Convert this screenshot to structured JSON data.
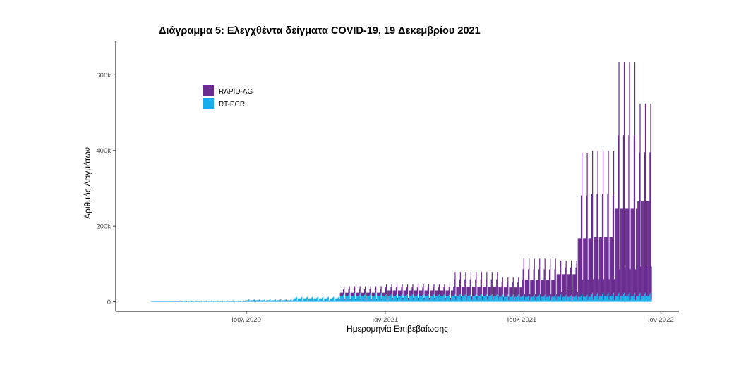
{
  "chart_data": {
    "type": "bar",
    "stacked": true,
    "title": "Διάγραμμα 5: Ελεγχθέντα δείγματα COVID-19, 19 Δεκεμβρίου 2021",
    "xlabel": "Ημερομηνία Επιβεβαίωσης",
    "ylabel": "Αριθμός Δειγμάτων",
    "x_range": [
      "2020-02-26",
      "2021-12-19"
    ],
    "x_axis_limits": [
      "2020-01-10",
      "2022-01-25"
    ],
    "ylim": [
      -25000,
      690000
    ],
    "x_ticks": [
      {
        "date": "2020-07-01",
        "label": "Ιουλ 2020"
      },
      {
        "date": "2021-01-01",
        "label": "Ιαν 2021"
      },
      {
        "date": "2021-07-01",
        "label": "Ιουλ 2021"
      },
      {
        "date": "2022-01-01",
        "label": "Ιαν 2022"
      }
    ],
    "y_ticks": [
      {
        "value": 0,
        "label": "0"
      },
      {
        "value": 200000,
        "label": "200k"
      },
      {
        "value": 400000,
        "label": "400k"
      },
      {
        "value": 600000,
        "label": "600k"
      }
    ],
    "grid": false,
    "legend_position": "top-left",
    "series": [
      {
        "name": "RAPID-AG",
        "color": "#6a2c91",
        "phases": [
          {
            "start": "2020-02-26",
            "end": "2020-10-31",
            "weekday": 0,
            "peak": 0
          },
          {
            "start": "2020-11-01",
            "end": "2020-12-31",
            "weekday": 10000,
            "peak": 18000
          },
          {
            "start": "2021-01-01",
            "end": "2021-03-31",
            "weekday": 15000,
            "peak": 25000
          },
          {
            "start": "2021-04-01",
            "end": "2021-05-31",
            "weekday": 25000,
            "peak": 58000
          },
          {
            "start": "2021-06-01",
            "end": "2021-06-30",
            "weekday": 25000,
            "peak": 45000
          },
          {
            "start": "2021-07-01",
            "end": "2021-08-15",
            "weekday": 45000,
            "peak": 95000
          },
          {
            "start": "2021-08-16",
            "end": "2021-09-12",
            "weekday": 60000,
            "peak": 90000
          },
          {
            "start": "2021-09-13",
            "end": "2021-10-31",
            "weekday": 155000,
            "peak": 375000
          },
          {
            "start": "2021-11-01",
            "end": "2021-11-30",
            "weekday": 230000,
            "peak": 610000
          },
          {
            "start": "2021-12-01",
            "end": "2021-12-19",
            "weekday": 250000,
            "peak": 500000
          }
        ]
      },
      {
        "name": "RT-PCR",
        "color": "#1aadeb",
        "phases": [
          {
            "start": "2020-02-26",
            "end": "2020-03-31",
            "weekday": 400,
            "peak": 800
          },
          {
            "start": "2020-04-01",
            "end": "2020-06-30",
            "weekday": 2000,
            "peak": 3500
          },
          {
            "start": "2020-07-01",
            "end": "2020-08-31",
            "weekday": 4000,
            "peak": 6500
          },
          {
            "start": "2020-09-01",
            "end": "2020-10-31",
            "weekday": 9000,
            "peak": 13000
          },
          {
            "start": "2020-11-01",
            "end": "2020-12-31",
            "weekday": 14000,
            "peak": 23000
          },
          {
            "start": "2021-01-01",
            "end": "2021-05-31",
            "weekday": 15000,
            "peak": 21000
          },
          {
            "start": "2021-06-01",
            "end": "2021-09-30",
            "weekday": 13000,
            "peak": 19000
          },
          {
            "start": "2021-10-01",
            "end": "2021-12-19",
            "weekday": 16000,
            "peak": 24000
          }
        ]
      }
    ]
  }
}
